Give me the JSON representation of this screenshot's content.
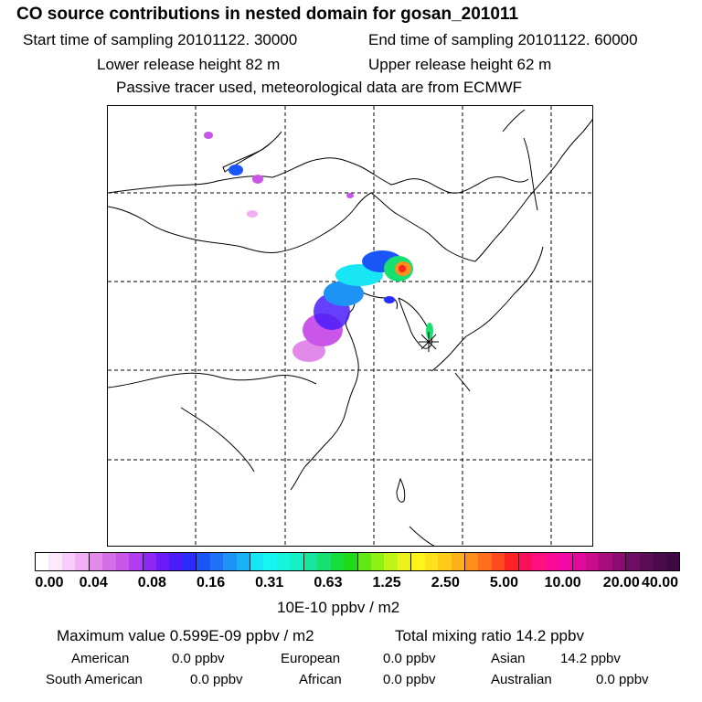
{
  "header": {
    "title": "CO  source contributions in nested domain for gosan_201011",
    "start_time": "Start time of sampling 20101122. 30000",
    "end_time": "End time of sampling 20101122. 60000",
    "lower_release": "Lower release height   82 m",
    "upper_release": "Upper release height   62 m",
    "tracer_note": "Passive tracer used, meteorological data are from ECMWF"
  },
  "colorbar": {
    "tick_labels": [
      "0.00",
      "0.04",
      "0.08",
      "0.16",
      "0.31",
      "0.63",
      "1.25",
      "2.50",
      "5.00",
      "10.00",
      "20.00",
      "40.00"
    ],
    "colors": [
      "#ffffff",
      "#fde9fd",
      "#f9ccf9",
      "#f2b0f4",
      "#e28ae9",
      "#d66ee6",
      "#c955e9",
      "#b23df0",
      "#8e27f3",
      "#6b1cf6",
      "#4a1df8",
      "#2a2cf9",
      "#1a55f7",
      "#1f72f7",
      "#1e93f6",
      "#1ab2f7",
      "#18e6f5",
      "#17f5f0",
      "#16f5dc",
      "#16f0c5",
      "#16e69e",
      "#15e070",
      "#16dd3c",
      "#20d919",
      "#62e813",
      "#8ef013",
      "#c0f518",
      "#ebf21a",
      "#fff31c",
      "#fde21b",
      "#ffcc18",
      "#fdb11a",
      "#ff8f1a",
      "#ff6e1c",
      "#ff4a1f",
      "#ff2224",
      "#f7105a",
      "#ff0f80",
      "#fa0a96",
      "#f20aa8",
      "#e20a9d",
      "#c90c8c",
      "#a80c7d",
      "#8b0c70",
      "#6e0d66",
      "#5a0c55",
      "#4a0b4c",
      "#3e0a44"
    ],
    "unit": "10E-10 ppbv / m2"
  },
  "summary": {
    "max_value": "Maximum value  0.599E-09 ppbv / m2",
    "total_mixing": "Total mixing ratio       14.2 ppbv",
    "regions": [
      {
        "name": "American",
        "value": "0.0 ppbv"
      },
      {
        "name": "European",
        "value": "0.0 ppbv"
      },
      {
        "name": "Asian",
        "value": "14.2 ppbv"
      },
      {
        "name": "South American",
        "value": "0.0 ppbv"
      },
      {
        "name": "African",
        "value": "0.0 ppbv"
      },
      {
        "name": "Australian",
        "value": "0.0 ppbv"
      }
    ]
  }
}
